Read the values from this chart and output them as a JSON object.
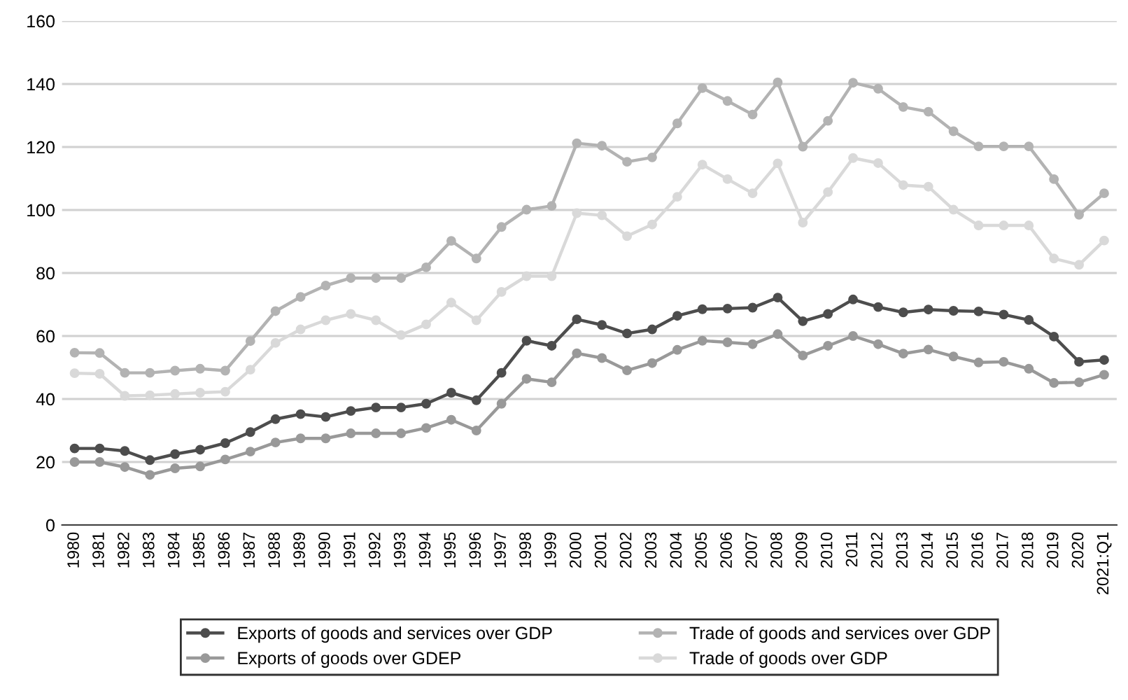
{
  "chart_data": {
    "type": "line",
    "categories": [
      "1980",
      "1981",
      "1982",
      "1983",
      "1984",
      "1985",
      "1986",
      "1987",
      "1988",
      "1989",
      "1990",
      "1991",
      "1992",
      "1993",
      "1994",
      "1995",
      "1996",
      "1997",
      "1998",
      "1999",
      "2000",
      "2001",
      "2002",
      "2003",
      "2004",
      "2005",
      "2006",
      "2007",
      "2008",
      "2009",
      "2010",
      "2011",
      "2012",
      "2013",
      "2014",
      "2015",
      "2016",
      "2017",
      "2018",
      "2019",
      "2020",
      "2021:Q1"
    ],
    "series": [
      {
        "name": "Exports of goods and services over GDP",
        "color": "#4d4d4d",
        "values": [
          24.3,
          24.3,
          23.5,
          20.6,
          22.5,
          23.9,
          26,
          29.5,
          33.6,
          35.2,
          34.3,
          36.2,
          37.3,
          37.3,
          38.5,
          42,
          39.6,
          48.3,
          58.5,
          56.9,
          65.3,
          63.5,
          60.8,
          62.1,
          66.4,
          68.5,
          68.7,
          69,
          72.2,
          64.7,
          67,
          71.6,
          69.2,
          67.5,
          68.4,
          68,
          67.8,
          66.8,
          65.1,
          59.8,
          51.8,
          52.4
        ]
      },
      {
        "name": "Exports of goods over GDEP",
        "color": "#999999",
        "values": [
          20,
          20,
          18.4,
          15.9,
          18,
          18.6,
          20.8,
          23.3,
          26.2,
          27.5,
          27.5,
          29.1,
          29.1,
          29.1,
          30.8,
          33.4,
          30,
          38.5,
          46.4,
          45.3,
          54.5,
          53,
          49.1,
          51.4,
          55.6,
          58.5,
          58,
          57.4,
          60.6,
          53.8,
          56.9,
          60,
          57.4,
          54.4,
          55.7,
          53.5,
          51.6,
          51.8,
          49.6,
          45.1,
          45.3,
          47.7
        ]
      },
      {
        "name": "Trade of goods and services over GDP",
        "color": "#b3b3b3",
        "values": [
          54.7,
          54.6,
          48.3,
          48.3,
          49,
          49.6,
          49,
          58.4,
          67.9,
          72.4,
          76,
          78.4,
          78.4,
          78.4,
          81.8,
          90.2,
          84.6,
          94.6,
          100.1,
          101.3,
          121.2,
          120.4,
          115.3,
          116.7,
          127.5,
          138.7,
          134.6,
          130.3,
          140.5,
          120.1,
          128.3,
          140.4,
          138.5,
          132.7,
          131.2,
          125,
          120.2,
          120.2,
          120.2,
          109.8,
          98.5,
          105.3
        ]
      },
      {
        "name": "Trade of goods over GDP",
        "color": "#d9d9d9",
        "values": [
          48.2,
          48,
          41,
          41.2,
          41.6,
          42,
          42.3,
          49.3,
          57.8,
          62.1,
          65,
          67,
          65,
          60.3,
          63.7,
          70.6,
          65,
          74,
          79,
          79,
          99,
          98.3,
          91.7,
          95.4,
          104.2,
          114.4,
          109.8,
          105.3,
          114.8,
          96,
          105.7,
          116.5,
          114.9,
          107.9,
          107.4,
          100.1,
          95.1,
          95.1,
          95.1,
          84.6,
          82.6,
          90.3
        ]
      }
    ],
    "ylim": [
      0,
      160
    ],
    "yticks": [
      0,
      20,
      40,
      60,
      80,
      100,
      120,
      140,
      160
    ],
    "grid": "y",
    "legend": "bottom",
    "marker": "circle",
    "line_style": "solid"
  }
}
